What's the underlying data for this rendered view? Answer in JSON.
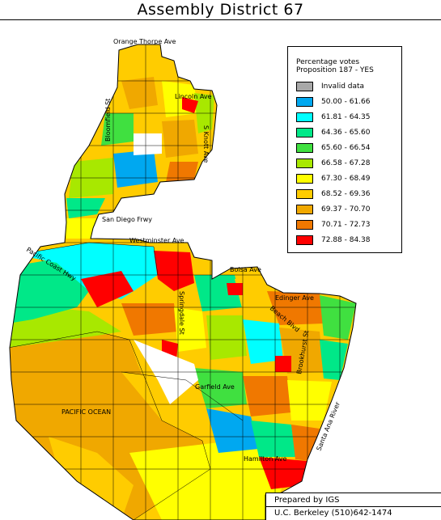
{
  "map": {
    "title": "Assembly District 67",
    "ocean_label": "PACIFIC OCEAN",
    "streets": [
      {
        "id": "orange-thorpe",
        "label": "Orange Thorpe Ave"
      },
      {
        "id": "lincoln",
        "label": "Lincoln Ave"
      },
      {
        "id": "bloomfield",
        "label": "Bloomfield St"
      },
      {
        "id": "knott",
        "label": "S Knott Ave"
      },
      {
        "id": "san-diego-frwy",
        "label": "San Diego Frwy"
      },
      {
        "id": "westminster",
        "label": "Westminster Ave"
      },
      {
        "id": "pacific-coast-hwy",
        "label": "Pacific Coast Hwy"
      },
      {
        "id": "bolsa",
        "label": "Bolsa Ave"
      },
      {
        "id": "edinger",
        "label": "Edinger Ave"
      },
      {
        "id": "springdale",
        "label": "Springdale St"
      },
      {
        "id": "beach-blvd",
        "label": "Beach Blvd"
      },
      {
        "id": "garfield",
        "label": "Garfield Ave"
      },
      {
        "id": "brookhurst",
        "label": "Brookhurst St"
      },
      {
        "id": "santa-ana-river",
        "label": "Santa Ana River"
      },
      {
        "id": "hamilton",
        "label": "Hamilton Ave"
      }
    ]
  },
  "legend": {
    "title_line1": "Percentage votes",
    "title_line2": "Proposition 187 - YES",
    "items": [
      {
        "label": "Invalid data",
        "color": "#a8a8a8"
      },
      {
        "label": "50.00 - 61.66",
        "color": "#00a8f0"
      },
      {
        "label": "61.81 - 64.35",
        "color": "#00ffff"
      },
      {
        "label": "64.36 - 65.60",
        "color": "#00e888"
      },
      {
        "label": "65.60 - 66.54",
        "color": "#40e040"
      },
      {
        "label": "66.58 - 67.28",
        "color": "#a8e800"
      },
      {
        "label": "67.30 - 68.49",
        "color": "#ffff00"
      },
      {
        "label": "68.52 - 69.36",
        "color": "#ffcc00"
      },
      {
        "label": "69.37 - 70.70",
        "color": "#f0a800"
      },
      {
        "label": "70.71 - 72.73",
        "color": "#f07800"
      },
      {
        "label": "72.88 - 84.38",
        "color": "#ff0000"
      }
    ]
  },
  "credit": {
    "line1": "Prepared by IGS",
    "line2": "U.C. Berkeley  (510)642-1474"
  }
}
